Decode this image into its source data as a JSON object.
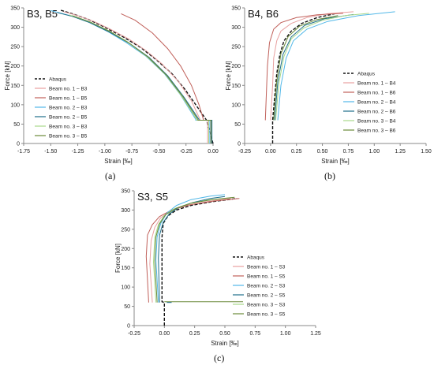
{
  "chart_data": [
    {
      "type": "line",
      "panel": "(a)",
      "title": "B3, B5",
      "xlabel": "Strain [‰]",
      "ylabel": "Force [kN]",
      "xlim": [
        -1.75,
        0.0
      ],
      "ylim": [
        0,
        350
      ],
      "xticks": [
        "-1.75",
        "-1.50",
        "-1.25",
        "-1.00",
        "-0.75",
        "-0.50",
        "-0.25",
        "0.00"
      ],
      "yticks": [
        "0",
        "50",
        "100",
        "150",
        "200",
        "250",
        "300",
        "350"
      ],
      "legend_position": "bottom-left",
      "grid": false,
      "series": [
        {
          "name": "Abaqus",
          "color": "#111111",
          "dashed": true,
          "x": [
            0.0,
            -0.06,
            -0.16,
            -0.26,
            -0.38,
            -0.52,
            -0.67,
            -0.83,
            -1.0,
            -1.15,
            -1.3,
            -1.42
          ],
          "y": [
            0,
            60,
            100,
            140,
            180,
            215,
            248,
            275,
            300,
            320,
            335,
            345
          ]
        },
        {
          "name": "Beam no. 1 – B3",
          "color": "#e8a0a0",
          "x": [
            -0.05,
            -0.05,
            -0.12,
            -0.12,
            -0.2,
            -0.32,
            -0.47,
            -0.62,
            -0.78,
            -0.95,
            -1.1,
            -1.25,
            -1.38
          ],
          "y": [
            0,
            60,
            60,
            62,
            110,
            160,
            205,
            240,
            270,
            295,
            315,
            330,
            340
          ]
        },
        {
          "name": "Beam no. 1 – B5",
          "color": "#c0605a",
          "x": [
            -0.02,
            -0.02,
            -0.09,
            -0.09,
            -0.13,
            -0.2,
            -0.3,
            -0.42,
            -0.56,
            -0.72,
            -0.85
          ],
          "y": [
            0,
            60,
            60,
            62,
            100,
            150,
            200,
            245,
            285,
            318,
            335
          ]
        },
        {
          "name": "Beam no. 2 – B3",
          "color": "#52b8e8",
          "x": [
            -0.03,
            -0.03,
            -0.16,
            -0.16,
            -0.3,
            -0.45,
            -0.62,
            -0.8,
            -0.98,
            -1.15,
            -1.32,
            -1.5
          ],
          "y": [
            0,
            60,
            60,
            62,
            125,
            180,
            225,
            260,
            290,
            313,
            330,
            343
          ]
        },
        {
          "name": "Beam no. 2 – B5",
          "color": "#1f6f8a",
          "x": [
            -0.01,
            -0.01,
            -0.13,
            -0.13,
            -0.27,
            -0.42,
            -0.59,
            -0.77,
            -0.96,
            -1.14,
            -1.3,
            -1.44
          ],
          "y": [
            0,
            60,
            60,
            62,
            120,
            175,
            222,
            258,
            288,
            312,
            328,
            338
          ]
        },
        {
          "name": "Beam no. 3 – B3",
          "color": "#a8d88a",
          "x": [
            -0.04,
            -0.04,
            -0.15,
            -0.15,
            -0.29,
            -0.44,
            -0.61,
            -0.79,
            -0.97,
            -1.15,
            -1.33
          ],
          "y": [
            0,
            60,
            60,
            62,
            122,
            178,
            224,
            262,
            292,
            315,
            332
          ]
        },
        {
          "name": "Beam no. 3 – B5",
          "color": "#6a8a3a",
          "x": [
            -0.02,
            -0.02,
            -0.14,
            -0.14,
            -0.28,
            -0.43,
            -0.6,
            -0.78,
            -0.96,
            -1.13,
            -1.3
          ],
          "y": [
            0,
            60,
            60,
            62,
            121,
            176,
            223,
            260,
            290,
            313,
            330
          ]
        }
      ]
    },
    {
      "type": "line",
      "panel": "(b)",
      "title": "B4, B6",
      "xlabel": "Strain [‰]",
      "ylabel": "Force [kN]",
      "xlim": [
        -0.25,
        1.5
      ],
      "ylim": [
        0,
        350
      ],
      "xticks": [
        "-0.25",
        "0.00",
        "0.25",
        "0.50",
        "0.75",
        "1.00",
        "1.25",
        "1.50"
      ],
      "yticks": [
        "0",
        "50",
        "100",
        "150",
        "200",
        "250",
        "300",
        "350"
      ],
      "legend_position": "bottom-right",
      "grid": false,
      "series": [
        {
          "name": "Abaqus",
          "color": "#111111",
          "dashed": true,
          "x": [
            0.02,
            0.02,
            0.04,
            0.06,
            0.09,
            0.13,
            0.2,
            0.3,
            0.45,
            0.62
          ],
          "y": [
            0,
            60,
            120,
            180,
            230,
            265,
            290,
            310,
            325,
            335
          ]
        },
        {
          "name": "Beam no. 1 – B4",
          "color": "#e8a0a0",
          "x": [
            0.0,
            0.0,
            0.02,
            0.03,
            0.06,
            0.1,
            0.2,
            0.35,
            0.55,
            0.8
          ],
          "y": [
            60,
            62,
            150,
            220,
            265,
            290,
            310,
            325,
            335,
            340
          ]
        },
        {
          "name": "Beam no. 1 – B6",
          "color": "#c0605a",
          "x": [
            -0.05,
            -0.05,
            -0.03,
            -0.01,
            0.03,
            0.1,
            0.25,
            0.45,
            0.7
          ],
          "y": [
            60,
            62,
            200,
            260,
            295,
            312,
            325,
            332,
            336
          ]
        },
        {
          "name": "Beam no. 2 – B4",
          "color": "#52b8e8",
          "x": [
            0.07,
            0.07,
            0.1,
            0.15,
            0.22,
            0.35,
            0.55,
            0.85,
            1.2
          ],
          "y": [
            60,
            62,
            150,
            220,
            265,
            295,
            315,
            330,
            340
          ]
        },
        {
          "name": "Beam no. 2 – B6",
          "color": "#1f6f8a",
          "x": [
            0.04,
            0.04,
            0.07,
            0.12,
            0.2,
            0.33,
            0.52,
            0.8
          ],
          "y": [
            60,
            62,
            160,
            230,
            275,
            305,
            322,
            333
          ]
        },
        {
          "name": "Beam no. 3 – B4",
          "color": "#a8d88a",
          "x": [
            0.05,
            0.05,
            0.08,
            0.13,
            0.2,
            0.32,
            0.5,
            0.72,
            0.95
          ],
          "y": [
            60,
            62,
            155,
            225,
            270,
            298,
            318,
            330,
            336
          ]
        },
        {
          "name": "Beam no. 3 – B6",
          "color": "#6a8a3a",
          "x": [
            0.03,
            0.03,
            0.06,
            0.1,
            0.17,
            0.28,
            0.45,
            0.65
          ],
          "y": [
            60,
            62,
            160,
            232,
            276,
            303,
            320,
            330
          ]
        }
      ]
    },
    {
      "type": "line",
      "panel": "(c)",
      "title": "S3, S5",
      "xlabel": "Strain [‰]",
      "ylabel": "Force [kN]",
      "xlim": [
        -0.25,
        1.25
      ],
      "ylim": [
        0,
        350
      ],
      "xticks": [
        "-0.25",
        "0.00",
        "0.25",
        "0.50",
        "0.75",
        "1.00",
        "1.25"
      ],
      "yticks": [
        "0",
        "50",
        "100",
        "150",
        "200",
        "250",
        "300",
        "350"
      ],
      "legend_position": "bottom-right",
      "grid": false,
      "series": [
        {
          "name": "Abaqus",
          "color": "#111111",
          "dashed": true,
          "x": [
            0.0,
            0.0,
            -0.02,
            -0.02,
            -0.01,
            0.03,
            0.1,
            0.22,
            0.4,
            0.6
          ],
          "y": [
            0,
            60,
            62,
            230,
            265,
            285,
            300,
            312,
            322,
            330
          ]
        },
        {
          "name": "Beam no. 1 – S3",
          "color": "#e8a0a0",
          "x": [
            -0.1,
            -0.1,
            -0.12,
            -0.11,
            -0.08,
            -0.03,
            0.05,
            0.18,
            0.35,
            0.55
          ],
          "y": [
            60,
            62,
            160,
            220,
            255,
            280,
            298,
            312,
            322,
            330
          ]
        },
        {
          "name": "Beam no. 1 – S5",
          "color": "#c0605a",
          "x": [
            -0.13,
            -0.13,
            -0.15,
            -0.14,
            -0.1,
            -0.04,
            0.06,
            0.2,
            0.4,
            0.62
          ],
          "y": [
            60,
            62,
            180,
            235,
            262,
            283,
            300,
            313,
            323,
            330
          ]
        },
        {
          "name": "Beam no. 2 – S3",
          "color": "#52b8e8",
          "x": [
            -0.05,
            -0.05,
            -0.07,
            -0.06,
            -0.03,
            0.02,
            0.1,
            0.22,
            0.38,
            0.5
          ],
          "y": [
            60,
            62,
            170,
            230,
            265,
            292,
            312,
            327,
            336,
            340
          ]
        },
        {
          "name": "Beam no. 2 – S5",
          "color": "#1f6f8a",
          "x": [
            -0.04,
            -0.04,
            -0.05,
            -0.04,
            -0.01,
            0.04,
            0.12,
            0.24,
            0.38,
            0.5
          ],
          "y": [
            60,
            62,
            175,
            235,
            268,
            290,
            307,
            320,
            330,
            335
          ]
        },
        {
          "name": "Beam no. 3 – S3",
          "color": "#a8d88a",
          "x": [
            -0.07,
            -0.07,
            -0.09,
            -0.08,
            -0.05,
            0.0,
            0.08,
            0.2,
            0.36,
            0.55
          ],
          "y": [
            60,
            62,
            165,
            228,
            262,
            286,
            303,
            316,
            326,
            332
          ]
        },
        {
          "name": "Beam no. 3 – S5",
          "color": "#6a8a3a",
          "x": [
            -0.06,
            -0.06,
            -0.08,
            -0.07,
            -0.04,
            0.01,
            0.1,
            0.22,
            0.4,
            0.58
          ],
          "y": [
            60,
            62,
            168,
            230,
            264,
            288,
            305,
            318,
            327,
            333
          ]
        }
      ],
      "extra_segments": [
        {
          "color": "#6a8a3a",
          "x": [
            0.0,
            0.65
          ],
          "y": [
            62,
            62
          ]
        },
        {
          "color": "#1f6f8a",
          "x": [
            0.02,
            0.06
          ],
          "y": [
            60,
            60
          ]
        }
      ]
    }
  ]
}
